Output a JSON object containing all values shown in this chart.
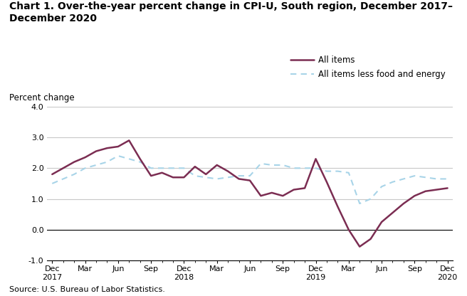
{
  "title_line1": "Chart 1. Over-the-year percent change in CPI-U, South region, December 2017–",
  "title_line2": "December 2020",
  "ylabel": "Percent change",
  "source": "Source: U.S. Bureau of Labor Statistics.",
  "ylim": [
    -1.0,
    4.0
  ],
  "yticks": [
    -1.0,
    0.0,
    1.0,
    2.0,
    3.0,
    4.0
  ],
  "x_tick_labels": [
    "Dec\n2017",
    "Mar",
    "Jun",
    "Sep",
    "Dec\n2018",
    "Mar",
    "Jun",
    "Sep",
    "Dec\n2019",
    "Mar",
    "Jun",
    "Sep",
    "Dec\n2020"
  ],
  "all_items_vals": [
    1.8,
    2.0,
    2.2,
    2.35,
    2.55,
    2.65,
    2.7,
    2.9,
    2.3,
    1.75,
    1.85,
    1.7,
    1.7,
    2.05,
    1.8,
    2.1,
    1.9,
    1.65,
    1.6,
    1.1,
    1.2,
    1.1,
    1.3,
    1.35,
    2.3,
    1.55,
    0.75,
    0.0,
    -0.55,
    -0.3,
    0.25,
    0.55,
    0.85,
    1.1,
    1.25,
    1.3,
    1.35
  ],
  "less_vals": [
    1.5,
    1.65,
    1.8,
    2.0,
    2.1,
    2.2,
    2.4,
    2.3,
    2.2,
    2.0,
    2.0,
    2.0,
    2.0,
    1.75,
    1.7,
    1.65,
    1.7,
    1.75,
    1.75,
    2.15,
    2.1,
    2.1,
    2.0,
    2.0,
    2.0,
    1.9,
    1.9,
    1.85,
    0.85,
    1.0,
    1.4,
    1.55,
    1.65,
    1.75,
    1.7,
    1.65,
    1.65
  ],
  "all_items_color": "#7B2D52",
  "all_items_less_color": "#A8D4E8",
  "all_items_linewidth": 1.8,
  "all_items_less_linewidth": 1.5,
  "grid_color": "#c8c8c8",
  "bg_color": "#ffffff",
  "tick_positions": [
    0,
    3,
    6,
    9,
    12,
    15,
    18,
    21,
    24,
    27,
    30,
    33,
    36
  ]
}
